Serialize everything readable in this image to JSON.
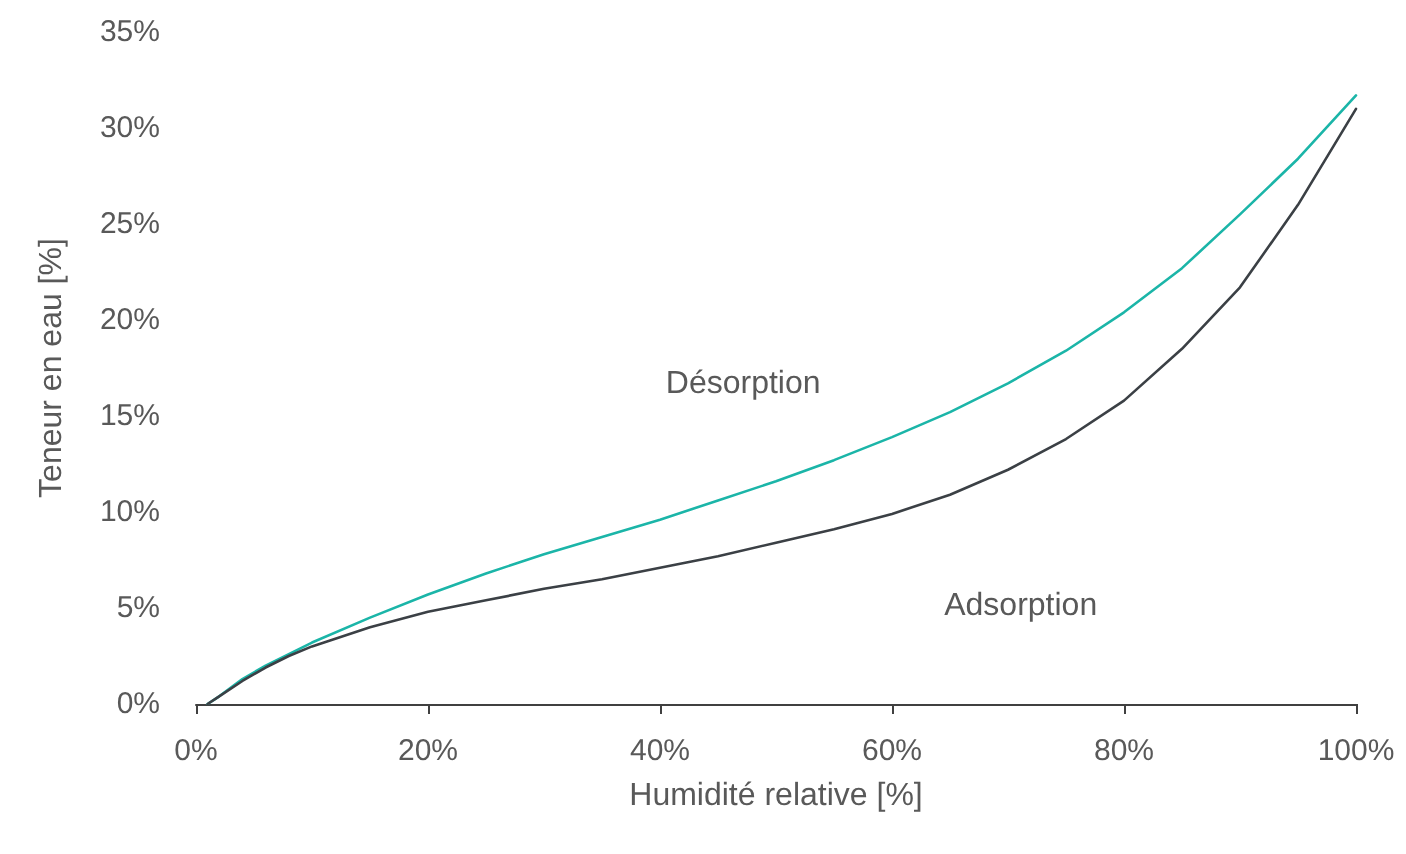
{
  "chart_data": {
    "type": "line",
    "xlabel": "Humidité relative [%]",
    "ylabel": "Teneur en eau [%]",
    "xlim": [
      0,
      100
    ],
    "ylim": [
      0,
      35
    ],
    "xticks": [
      {
        "value": 0,
        "label": "0%"
      },
      {
        "value": 20,
        "label": "20%"
      },
      {
        "value": 40,
        "label": "40%"
      },
      {
        "value": 60,
        "label": "60%"
      },
      {
        "value": 80,
        "label": "80%"
      },
      {
        "value": 100,
        "label": "100%"
      }
    ],
    "yticks": [
      {
        "value": 0,
        "label": "0%"
      },
      {
        "value": 5,
        "label": "5%"
      },
      {
        "value": 10,
        "label": "10%"
      },
      {
        "value": 15,
        "label": "15%"
      },
      {
        "value": 20,
        "label": "20%"
      },
      {
        "value": 25,
        "label": "25%"
      },
      {
        "value": 30,
        "label": "30%"
      },
      {
        "value": 35,
        "label": "35%"
      }
    ],
    "grid": false,
    "legend": false,
    "marker": "none",
    "line_style": "solid",
    "x": [
      1,
      2,
      4,
      6,
      8,
      10,
      15,
      20,
      25,
      30,
      35,
      40,
      45,
      50,
      55,
      60,
      65,
      70,
      75,
      80,
      85,
      90,
      95,
      100
    ],
    "series": [
      {
        "name": "Désorption",
        "color": "#1bb5a8",
        "values": [
          0,
          0.4,
          1.3,
          2.0,
          2.6,
          3.2,
          4.5,
          5.7,
          6.8,
          7.8,
          8.7,
          9.6,
          10.6,
          11.6,
          12.7,
          13.9,
          15.2,
          16.7,
          18.4,
          20.4,
          22.7,
          25.5,
          28.4,
          31.7
        ]
      },
      {
        "name": "Adsorption",
        "color": "#3b4045",
        "values": [
          0,
          0.4,
          1.2,
          1.9,
          2.5,
          3.0,
          4.0,
          4.8,
          5.4,
          6.0,
          6.5,
          7.1,
          7.7,
          8.4,
          9.1,
          9.9,
          10.9,
          12.2,
          13.8,
          15.8,
          18.5,
          21.7,
          26.0,
          31.0
        ]
      }
    ]
  }
}
